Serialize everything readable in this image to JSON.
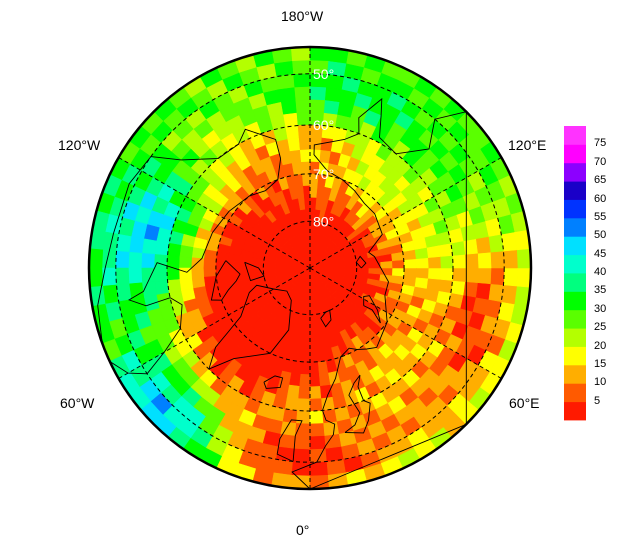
{
  "longitude_labels": {
    "top": "180°W",
    "bottom": "0°",
    "upper_left": "120°W",
    "upper_right": "120°E",
    "lower_left": "60°W",
    "lower_right": "60°E"
  },
  "latitude_labels": [
    "50°",
    "60°",
    "70°",
    "80°"
  ],
  "colorbar": {
    "ticks": [
      "75",
      "70",
      "65",
      "60",
      "55",
      "50",
      "45",
      "40",
      "35",
      "30",
      "25",
      "20",
      "15",
      "10",
      "5"
    ],
    "range": [
      0,
      80
    ],
    "colors": [
      "#ff1a00",
      "#ff5a00",
      "#ffae00",
      "#ffff00",
      "#b4ff00",
      "#5aff00",
      "#00ff00",
      "#00ff7f",
      "#00ffcc",
      "#00e0ff",
      "#0080ff",
      "#0033ff",
      "#1a00c8",
      "#8c00ff",
      "#ff00ff",
      "#ff33ff"
    ]
  },
  "projection": {
    "type": "north-polar-stereographic",
    "bounding_latitude": 45,
    "gridline_latitudes": [
      50,
      60,
      70,
      80
    ],
    "gridline_longitudes": [
      0,
      60,
      120,
      180,
      240,
      300
    ]
  }
}
